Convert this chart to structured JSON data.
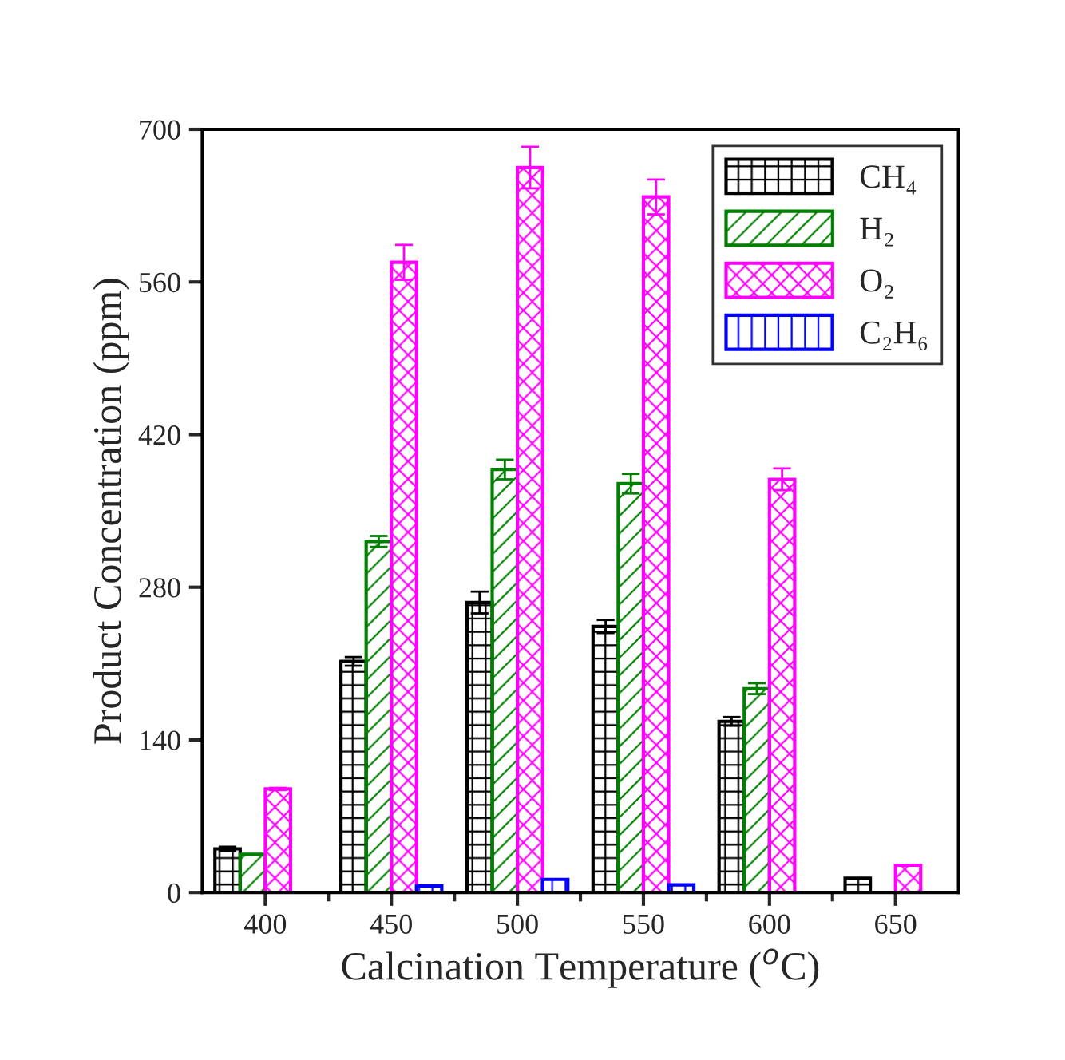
{
  "chart_data": {
    "type": "bar",
    "xlabel": "Calcination Temperature ($^{o}$C)",
    "ylabel": "Product Concentration (ppm)",
    "categories": [
      "400",
      "450",
      "500",
      "550",
      "600",
      "650"
    ],
    "series": [
      {
        "name": "CH₄",
        "color": "#000000",
        "values": [
          40,
          212,
          266,
          244,
          157,
          13
        ],
        "errors": [
          2,
          4,
          10,
          6,
          4,
          null
        ]
      },
      {
        "name": "H₂",
        "color": "#008000",
        "values": [
          35,
          322,
          388,
          375,
          187,
          null
        ],
        "errors": [
          null,
          5,
          9,
          9,
          5,
          null
        ]
      },
      {
        "name": "O₂",
        "color": "#ff00ff",
        "values": [
          95,
          578,
          665,
          638,
          379,
          25
        ],
        "errors": [
          1,
          16,
          19,
          16,
          10,
          null
        ]
      },
      {
        "name": "C₂H₆",
        "color": "#0000ff",
        "values": [
          null,
          6,
          12,
          7,
          null,
          null
        ]
      }
    ],
    "ylim": [
      0,
      700
    ],
    "yticks": [
      0,
      140,
      280,
      420,
      560,
      700
    ],
    "grid": false,
    "legend": "top right"
  }
}
